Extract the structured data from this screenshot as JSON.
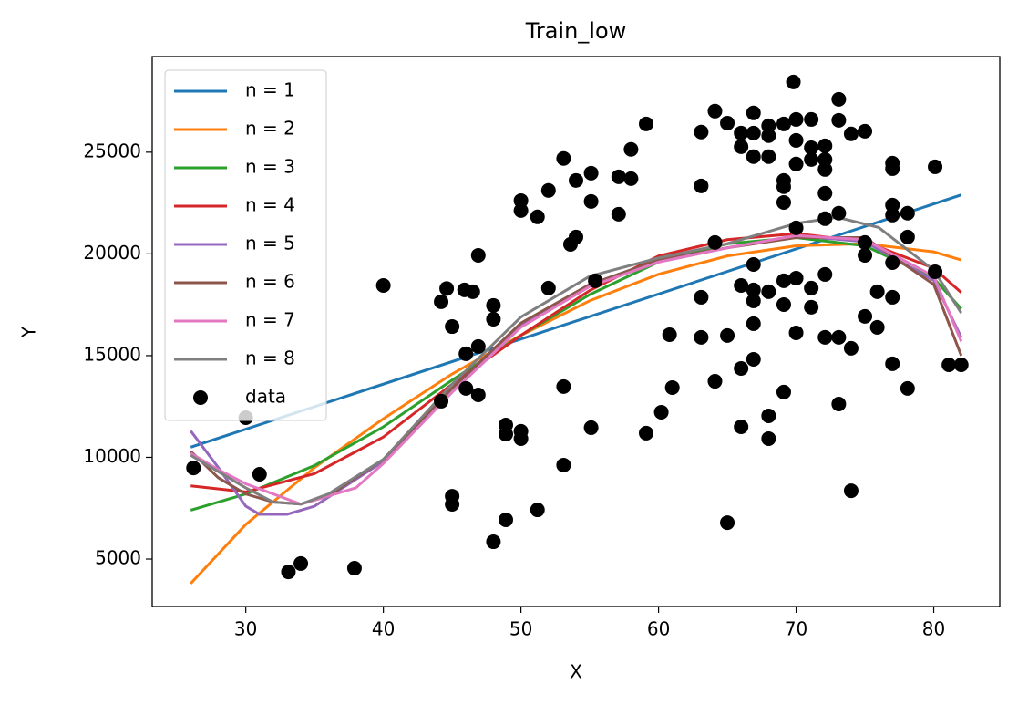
{
  "chart_data": {
    "type": "line",
    "title": "Train_low",
    "x_label": "X",
    "y_label": "Y",
    "xlim": [
      23.2,
      84.8
    ],
    "ylim": [
      2670,
      29700
    ],
    "xticks": [
      30,
      40,
      50,
      60,
      70,
      80
    ],
    "yticks": [
      5000,
      10000,
      15000,
      20000,
      25000
    ],
    "legend": "upper left",
    "series": [
      {
        "name": "n = 1",
        "color": "#1f77b4",
        "mark": "line",
        "x": [
          26,
          82
        ],
        "values": [
          10500,
          22900
        ]
      },
      {
        "name": "n = 2",
        "color": "#ff7f0e",
        "mark": "line",
        "x": [
          26,
          30,
          35,
          40,
          45,
          50,
          55,
          60,
          65,
          70,
          75,
          80,
          82
        ],
        "values": [
          3800,
          6700,
          9500,
          11900,
          14100,
          16000,
          17700,
          19000,
          19900,
          20400,
          20500,
          20100,
          19700
        ]
      },
      {
        "name": "n = 3",
        "color": "#2ca02c",
        "mark": "line",
        "x": [
          26,
          30,
          35,
          40,
          45,
          50,
          55,
          60,
          65,
          70,
          75,
          80,
          82
        ],
        "values": [
          7400,
          8200,
          9600,
          11500,
          13800,
          16000,
          18000,
          19600,
          20500,
          20800,
          20400,
          18800,
          17300
        ]
      },
      {
        "name": "n = 4",
        "color": "#d62728",
        "mark": "line",
        "x": [
          26,
          30,
          35,
          40,
          45,
          50,
          55,
          60,
          65,
          70,
          75,
          80,
          82
        ],
        "values": [
          8600,
          8300,
          9200,
          11000,
          13600,
          16000,
          18200,
          19900,
          20700,
          21000,
          20600,
          19300,
          18100
        ]
      },
      {
        "name": "n = 5",
        "color": "#9467bd",
        "mark": "line",
        "x": [
          26,
          28,
          30,
          31,
          33,
          35,
          40,
          45,
          50,
          55,
          60,
          65,
          70,
          75,
          80,
          82
        ],
        "values": [
          11300,
          9500,
          7600,
          7200,
          7200,
          7600,
          9800,
          13400,
          16500,
          18500,
          19600,
          20300,
          20900,
          20600,
          18700,
          15900
        ]
      },
      {
        "name": "n = 6",
        "color": "#8c564b",
        "mark": "line",
        "x": [
          26,
          28,
          30,
          32,
          34,
          36,
          40,
          45,
          50,
          55,
          60,
          65,
          70,
          75,
          80,
          82
        ],
        "values": [
          10300,
          9000,
          8200,
          7800,
          7700,
          8100,
          9900,
          13400,
          16600,
          18500,
          19700,
          20300,
          20800,
          20800,
          18500,
          15000
        ]
      },
      {
        "name": "n = 7",
        "color": "#e377c2",
        "mark": "line",
        "x": [
          26,
          28,
          30,
          34,
          38,
          40,
          45,
          50,
          55,
          60,
          65,
          70,
          75,
          80,
          82
        ],
        "values": [
          10200,
          9400,
          8700,
          7700,
          8500,
          9700,
          13200,
          16400,
          18400,
          19600,
          20300,
          20900,
          20700,
          18900,
          15700
        ]
      },
      {
        "name": "n = 8",
        "color": "#7f7f7f",
        "mark": "line",
        "x": [
          26,
          28,
          30,
          32,
          34,
          36,
          40,
          45,
          50,
          55,
          60,
          65,
          70,
          73,
          76,
          80,
          82
        ],
        "values": [
          10100,
          9300,
          8500,
          7800,
          7700,
          8200,
          9900,
          13600,
          16900,
          18900,
          19800,
          20500,
          21500,
          21800,
          21300,
          19200,
          17100
        ]
      },
      {
        "name": "data",
        "color": "#000000",
        "mark": "point",
        "x": [
          26.2,
          30,
          31,
          33.1,
          34,
          37.9,
          40,
          44.2,
          44.6,
          44.2,
          45,
          45,
          45,
          45.9,
          46.5,
          46,
          46,
          46.9,
          46.9,
          46.9,
          48,
          48,
          48,
          48.9,
          48.9,
          48.9,
          50,
          50,
          50,
          50,
          51.2,
          51.2,
          52,
          52,
          53.1,
          53.1,
          53.1,
          53.6,
          54,
          54,
          55.1,
          55.1,
          55.1,
          55.4,
          57.1,
          57.1,
          58,
          58,
          59.1,
          59.1,
          60.2,
          60.8,
          61,
          63.1,
          63.1,
          63.1,
          63.1,
          64.1,
          64.1,
          64.1,
          65,
          65,
          65,
          66,
          66,
          66,
          66,
          66,
          66.9,
          66.9,
          66.9,
          66.9,
          66.9,
          66.9,
          66.9,
          66.9,
          68,
          68,
          68,
          68,
          68,
          68,
          69.1,
          69.1,
          69.1,
          69.1,
          69.1,
          69.1,
          69.1,
          69.8,
          70,
          70,
          70,
          70,
          70,
          70,
          71.1,
          71.1,
          71.1,
          71.1,
          71.1,
          72.1,
          72.1,
          72.1,
          72.1,
          72.1,
          72.1,
          72.1,
          73.1,
          73.1,
          73.1,
          73.1,
          73.1,
          74,
          74,
          74,
          75,
          75,
          75,
          75,
          75.9,
          75.9,
          77,
          77,
          77,
          77,
          77,
          77,
          77,
          78.1,
          78.1,
          78.1,
          80.1,
          80.1,
          81.1,
          82
        ],
        "values": [
          9480,
          11950,
          9170,
          4370,
          4780,
          4550,
          18450,
          17650,
          18300,
          12760,
          16430,
          8090,
          7690,
          18230,
          18140,
          13390,
          15090,
          19930,
          15450,
          13070,
          17470,
          16790,
          5850,
          11590,
          11140,
          6930,
          22620,
          22130,
          11280,
          10920,
          21820,
          7420,
          23120,
          18320,
          24690,
          13480,
          9620,
          20470,
          20830,
          23610,
          23970,
          22580,
          11460,
          18680,
          23790,
          21950,
          25140,
          23700,
          26390,
          11190,
          12220,
          16030,
          13430,
          25990,
          23340,
          17870,
          15900,
          27020,
          20560,
          13740,
          26430,
          15990,
          6790,
          25940,
          25270,
          18450,
          14370,
          11500,
          26930,
          25940,
          24780,
          19480,
          18230,
          17690,
          16570,
          14820,
          26300,
          25810,
          24780,
          18140,
          12040,
          10920,
          26390,
          23610,
          23300,
          22530,
          18680,
          17510,
          13210,
          28450,
          26610,
          25580,
          24420,
          21280,
          18810,
          16120,
          26610,
          25220,
          24640,
          18320,
          17380,
          25310,
          24640,
          24150,
          22980,
          21730,
          18990,
          15900,
          27600,
          26570,
          22000,
          15900,
          12620,
          25900,
          15360,
          8360,
          26030,
          20560,
          19930,
          16930,
          18140,
          16390,
          24460,
          24190,
          22400,
          21910,
          19570,
          17870,
          14600,
          22000,
          20830,
          13390,
          24280,
          19120,
          14550,
          14550
        ]
      }
    ]
  }
}
